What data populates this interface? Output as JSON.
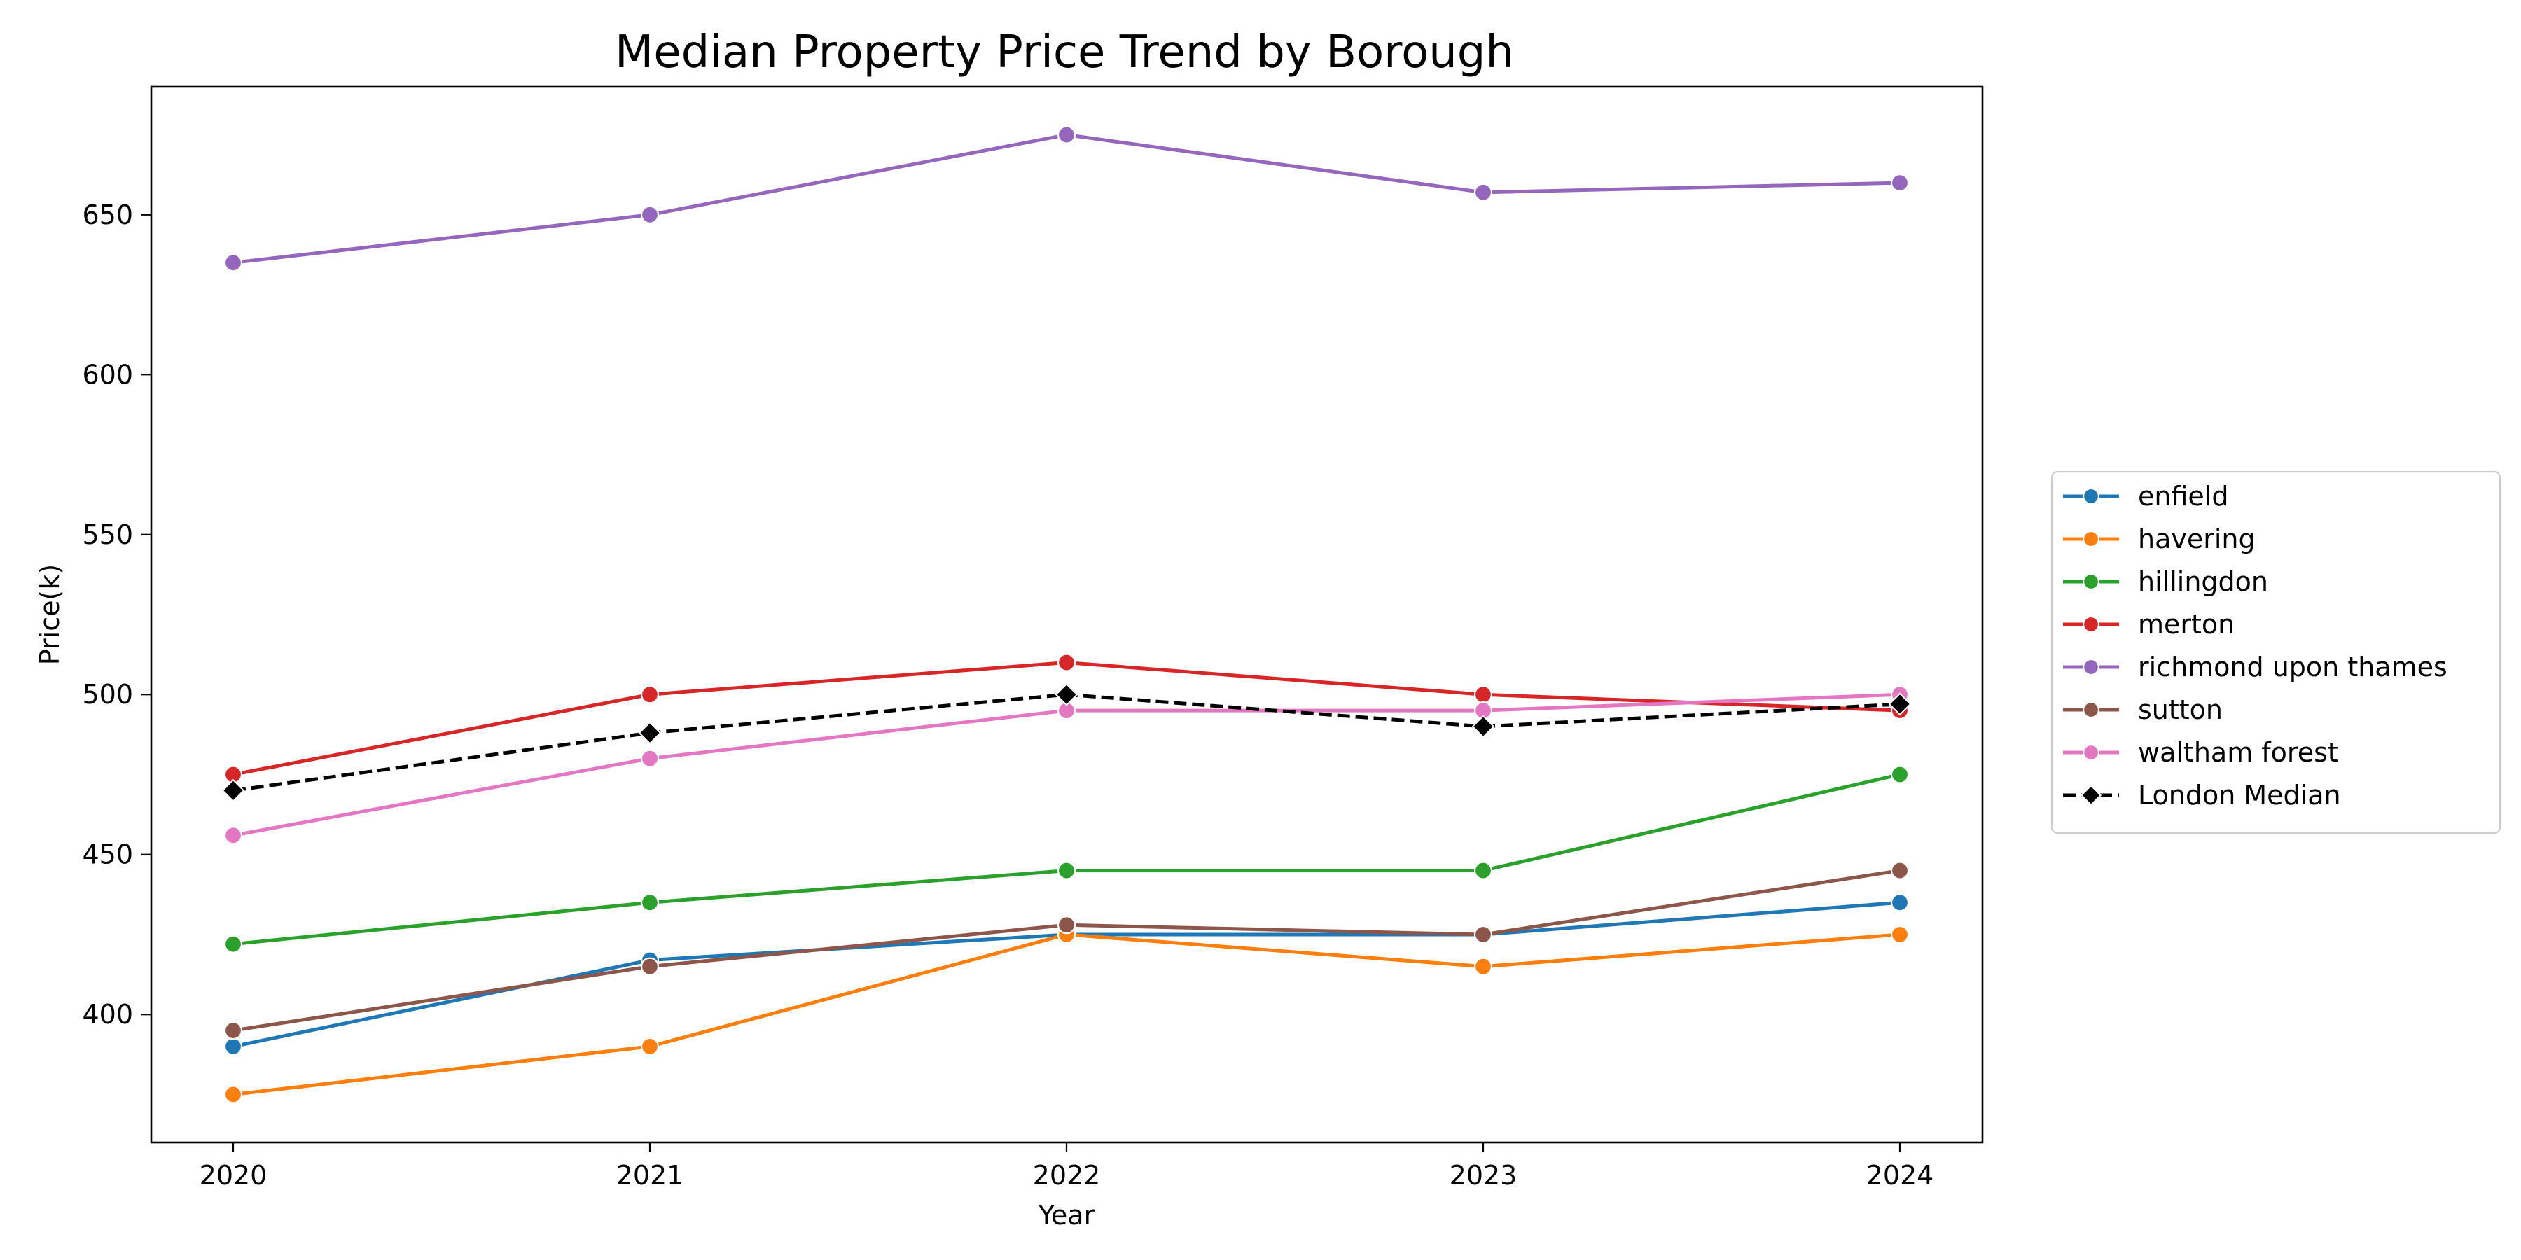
{
  "chart_data": {
    "type": "line",
    "title": "Median Property Price Trend by Borough",
    "xlabel": "Year",
    "ylabel": "Price(k)",
    "x": [
      2020,
      2021,
      2022,
      2023,
      2024
    ],
    "ylim": [
      360,
      690
    ],
    "yticks": [
      400,
      450,
      500,
      550,
      600,
      650
    ],
    "grid": false,
    "legend_position": "right",
    "series": [
      {
        "name": "enfield",
        "color": "#1f77b4",
        "marker": "circle",
        "dashed": false,
        "values": [
          390,
          417,
          425,
          425,
          435
        ]
      },
      {
        "name": "havering",
        "color": "#ff7f0e",
        "marker": "circle",
        "dashed": false,
        "values": [
          375,
          390,
          425,
          415,
          425
        ]
      },
      {
        "name": "hillingdon",
        "color": "#2ca02c",
        "marker": "circle",
        "dashed": false,
        "values": [
          422,
          435,
          445,
          445,
          475
        ]
      },
      {
        "name": "merton",
        "color": "#d62728",
        "marker": "circle",
        "dashed": false,
        "values": [
          475,
          500,
          510,
          500,
          495
        ]
      },
      {
        "name": "richmond upon thames",
        "color": "#9467bd",
        "marker": "circle",
        "dashed": false,
        "values": [
          635,
          650,
          675,
          657,
          660
        ]
      },
      {
        "name": "sutton",
        "color": "#8c564b",
        "marker": "circle",
        "dashed": false,
        "values": [
          395,
          415,
          428,
          425,
          445
        ]
      },
      {
        "name": "waltham forest",
        "color": "#e377c2",
        "marker": "circle",
        "dashed": false,
        "values": [
          456,
          480,
          495,
          495,
          500
        ]
      },
      {
        "name": "London Median",
        "color": "#000000",
        "marker": "diamond",
        "dashed": true,
        "values": [
          470,
          488,
          500,
          490,
          497
        ]
      }
    ]
  }
}
